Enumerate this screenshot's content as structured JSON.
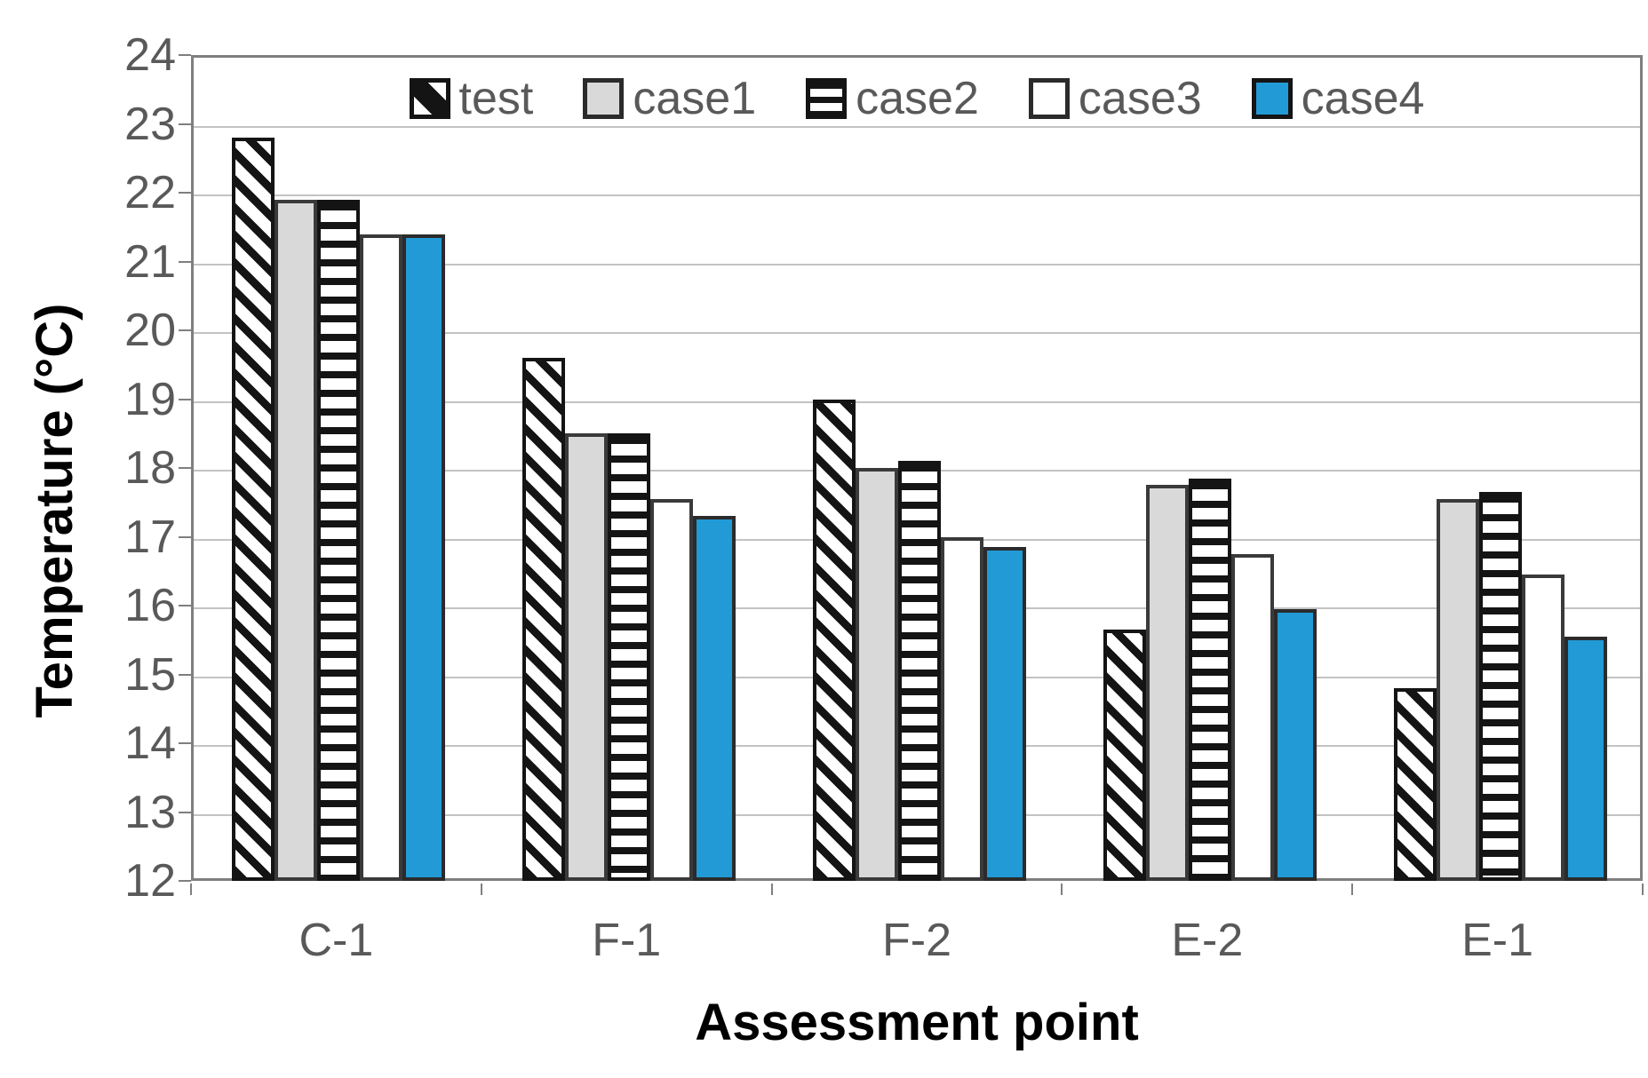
{
  "figure": {
    "y_axis_title": "Temperature (°C)",
    "x_axis_title": "Assessment point"
  },
  "chart_data": {
    "type": "bar",
    "title": "",
    "xlabel": "Assessment point",
    "ylabel": "Temperature (°C)",
    "ylim": [
      12,
      24
    ],
    "ytick_step": 1,
    "grid": true,
    "legend_position": "top-center-inside",
    "categories": [
      "C-1",
      "F-1",
      "F-2",
      "E-2",
      "E-1"
    ],
    "series": [
      {
        "name": "test",
        "pattern": "diagonal-hatch",
        "values": [
          22.8,
          19.6,
          19.0,
          15.65,
          14.8
        ]
      },
      {
        "name": "case1",
        "pattern": "solid-gray",
        "color": "#d9d9d9",
        "values": [
          21.9,
          18.5,
          18.0,
          17.75,
          17.55
        ]
      },
      {
        "name": "case2",
        "pattern": "horizontal-hatch",
        "values": [
          21.9,
          18.5,
          18.1,
          17.85,
          17.65
        ]
      },
      {
        "name": "case3",
        "pattern": "solid-white",
        "color": "#ffffff",
        "values": [
          21.4,
          17.55,
          17.0,
          16.75,
          16.45
        ]
      },
      {
        "name": "case4",
        "pattern": "solid-blue",
        "color": "#219ad6",
        "values": [
          21.4,
          17.3,
          16.85,
          15.95,
          15.55
        ]
      }
    ],
    "colors": {
      "blue": "#219ad6",
      "gray_fill": "#d9d9d9",
      "gridline": "#c3c3c3",
      "axis": "#7f7f7f",
      "tick_text": "#595959",
      "title_text": "#000000"
    }
  }
}
